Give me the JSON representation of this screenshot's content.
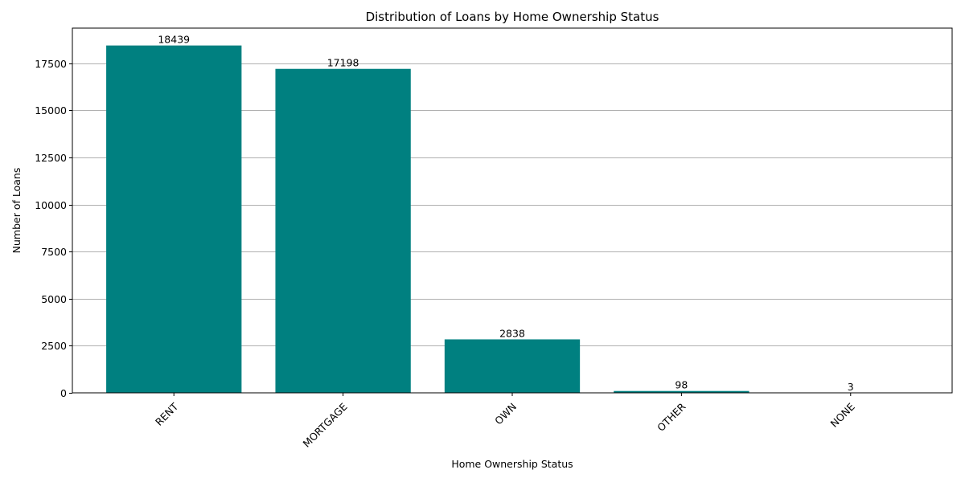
{
  "chart_data": {
    "type": "bar",
    "title": "Distribution of Loans by Home Ownership Status",
    "xlabel": "Home Ownership Status",
    "ylabel": "Number of Loans",
    "categories": [
      "RENT",
      "MORTGAGE",
      "OWN",
      "OTHER",
      "NONE"
    ],
    "values": [
      18439,
      17198,
      2838,
      98,
      3
    ],
    "data_labels": [
      "18439",
      "17198",
      "2838",
      "98",
      "3"
    ],
    "yticks": [
      0,
      2500,
      5000,
      7500,
      10000,
      12500,
      15000,
      17500
    ],
    "ytick_labels": [
      "0",
      "2500",
      "5000",
      "7500",
      "10000",
      "12500",
      "15000",
      "17500"
    ],
    "ylim": [
      0,
      19361
    ],
    "grid": "y-axis only",
    "x_tick_rotation": 45,
    "bar_color": "#008080",
    "grid_color": "#b0b0b0"
  }
}
